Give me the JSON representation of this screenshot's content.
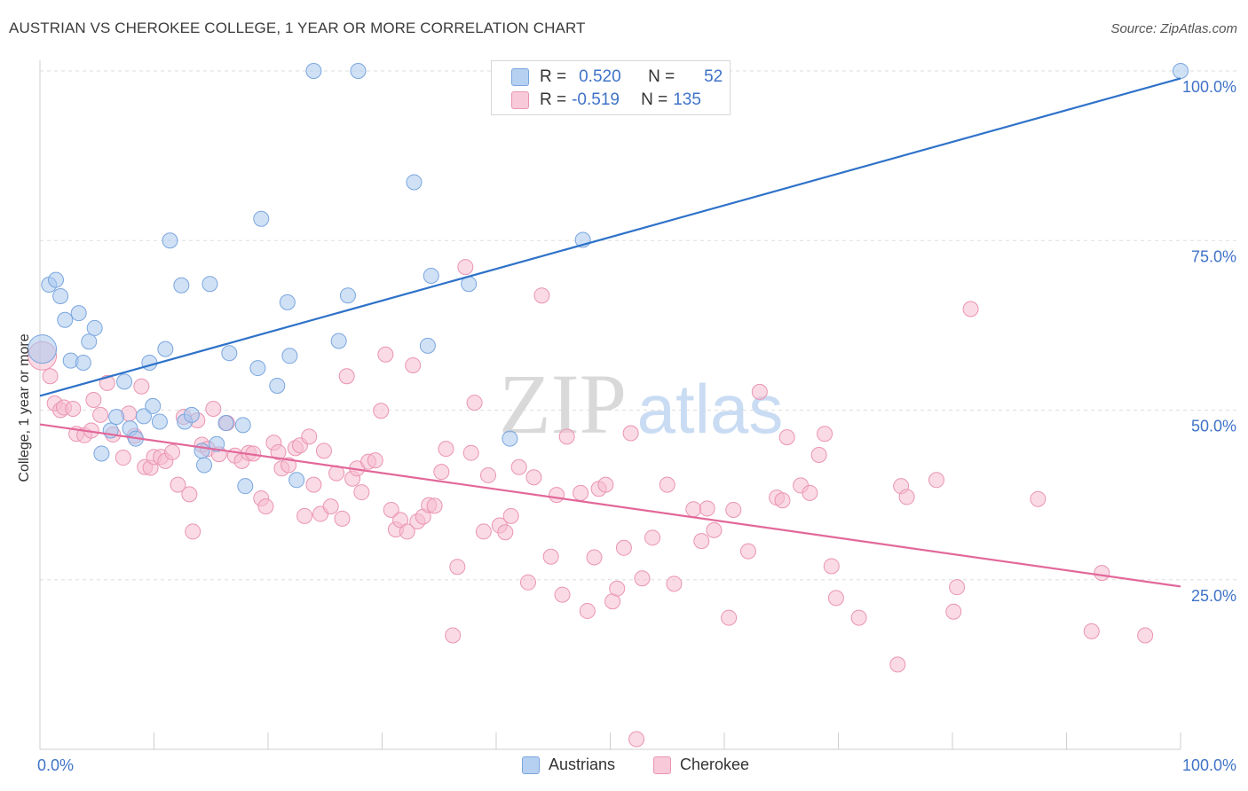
{
  "title": "AUSTRIAN VS CHEROKEE COLLEGE, 1 YEAR OR MORE CORRELATION CHART",
  "source": "Source: ZipAtlas.com",
  "watermark": {
    "zip": "ZIP",
    "atlas": "atlas"
  },
  "stats": {
    "r_label": "R =",
    "n_label": "N =",
    "rows": [
      {
        "r": "0.520",
        "n": "52"
      },
      {
        "r": "-0.519",
        "n": "135"
      }
    ]
  },
  "legend": [
    "Austrians",
    "Cherokee"
  ],
  "colors": {
    "blue_fill": "#a9c8ef",
    "blue_stroke": "#7aa6de",
    "blue_line": "#2e72c9",
    "pink_fill": "#f6bcd0",
    "pink_stroke": "#ea95b2",
    "pink_line": "#e2689a",
    "tick_text": "#3f73c8",
    "grid": "#dedede"
  },
  "chart_data": {
    "type": "scatter",
    "title": "AUSTRIAN VS CHEROKEE COLLEGE, 1 YEAR OR MORE CORRELATION CHART",
    "xlabel": "",
    "ylabel": "College, 1 year or more",
    "xlim": [
      0,
      100
    ],
    "ylim": [
      0,
      100
    ],
    "x_tick_labels": [
      "0.0%",
      "100.0%"
    ],
    "y_ticks": [
      25,
      50,
      75,
      100
    ],
    "y_tick_labels": [
      "25.0%",
      "50.0%",
      "75.0%",
      "100.0%"
    ],
    "grid": "horizontal dashed",
    "legend_position": "bottom",
    "series": [
      {
        "name": "Austrians",
        "trend": {
          "x": [
            0,
            100
          ],
          "y": [
            52.1,
            98.9
          ]
        },
        "points": [
          [
            0.2,
            59.0
          ],
          [
            0.8,
            68.5
          ],
          [
            1.4,
            69.2
          ],
          [
            1.8,
            66.8
          ],
          [
            2.2,
            63.3
          ],
          [
            2.7,
            57.3
          ],
          [
            3.4,
            64.3
          ],
          [
            3.8,
            57.0
          ],
          [
            4.3,
            60.1
          ],
          [
            4.8,
            62.1
          ],
          [
            5.4,
            43.6
          ],
          [
            6.2,
            47.0
          ],
          [
            6.7,
            49.0
          ],
          [
            7.4,
            54.2
          ],
          [
            7.9,
            47.3
          ],
          [
            8.4,
            45.8
          ],
          [
            9.1,
            49.1
          ],
          [
            9.6,
            57.0
          ],
          [
            9.9,
            50.6
          ],
          [
            10.5,
            48.3
          ],
          [
            11.0,
            59.0
          ],
          [
            11.4,
            75.0
          ],
          [
            12.4,
            68.4
          ],
          [
            12.7,
            48.3
          ],
          [
            13.3,
            49.3
          ],
          [
            14.2,
            44.0
          ],
          [
            14.4,
            41.9
          ],
          [
            14.9,
            68.6
          ],
          [
            15.5,
            45.0
          ],
          [
            16.3,
            48.1
          ],
          [
            16.6,
            58.4
          ],
          [
            17.8,
            47.8
          ],
          [
            18.0,
            38.8
          ],
          [
            19.1,
            56.2
          ],
          [
            19.4,
            78.2
          ],
          [
            20.8,
            53.6
          ],
          [
            21.7,
            65.9
          ],
          [
            21.9,
            58.0
          ],
          [
            22.5,
            39.7
          ],
          [
            24.0,
            100.0
          ],
          [
            26.2,
            60.2
          ],
          [
            27.0,
            66.9
          ],
          [
            27.9,
            100.0
          ],
          [
            32.8,
            83.6
          ],
          [
            34.0,
            59.5
          ],
          [
            34.3,
            69.8
          ],
          [
            37.6,
            68.6
          ],
          [
            41.2,
            45.8
          ],
          [
            47.6,
            75.1
          ],
          [
            52.0,
            95.4
          ],
          [
            100.0,
            100.0
          ]
        ]
      },
      {
        "name": "Cherokee",
        "trend": {
          "x": [
            0,
            100
          ],
          "y": [
            47.9,
            24.0
          ]
        },
        "points": [
          [
            0.2,
            58.0
          ],
          [
            0.9,
            55.0
          ],
          [
            1.3,
            51.0
          ],
          [
            1.8,
            50.0
          ],
          [
            2.1,
            50.4
          ],
          [
            2.9,
            50.2
          ],
          [
            3.2,
            46.5
          ],
          [
            3.9,
            46.3
          ],
          [
            4.5,
            47.0
          ],
          [
            4.7,
            51.5
          ],
          [
            5.3,
            49.3
          ],
          [
            5.9,
            54.0
          ],
          [
            6.4,
            46.4
          ],
          [
            7.3,
            43.0
          ],
          [
            7.8,
            49.5
          ],
          [
            8.3,
            46.2
          ],
          [
            8.9,
            53.5
          ],
          [
            9.2,
            41.6
          ],
          [
            9.7,
            41.5
          ],
          [
            10.0,
            43.1
          ],
          [
            10.6,
            43.1
          ],
          [
            11.0,
            42.5
          ],
          [
            11.6,
            43.8
          ],
          [
            12.1,
            39.0
          ],
          [
            12.6,
            49.0
          ],
          [
            13.1,
            37.6
          ],
          [
            13.4,
            32.1
          ],
          [
            13.8,
            48.5
          ],
          [
            14.2,
            44.9
          ],
          [
            14.7,
            44.3
          ],
          [
            15.2,
            50.2
          ],
          [
            15.7,
            43.5
          ],
          [
            16.4,
            48.1
          ],
          [
            17.1,
            43.3
          ],
          [
            17.7,
            42.5
          ],
          [
            18.3,
            43.7
          ],
          [
            18.7,
            43.6
          ],
          [
            19.4,
            37.0
          ],
          [
            19.8,
            35.8
          ],
          [
            20.5,
            45.2
          ],
          [
            20.9,
            43.8
          ],
          [
            21.2,
            41.4
          ],
          [
            21.8,
            41.9
          ],
          [
            22.4,
            44.4
          ],
          [
            22.8,
            44.8
          ],
          [
            23.2,
            34.4
          ],
          [
            23.6,
            46.1
          ],
          [
            24.0,
            39.0
          ],
          [
            24.6,
            34.7
          ],
          [
            24.9,
            44.0
          ],
          [
            25.5,
            35.8
          ],
          [
            26.0,
            40.7
          ],
          [
            26.5,
            34.0
          ],
          [
            26.9,
            55.0
          ],
          [
            27.4,
            39.9
          ],
          [
            27.8,
            41.4
          ],
          [
            28.2,
            37.9
          ],
          [
            28.8,
            42.4
          ],
          [
            29.4,
            42.6
          ],
          [
            29.9,
            49.9
          ],
          [
            30.3,
            58.2
          ],
          [
            30.8,
            35.3
          ],
          [
            31.2,
            32.4
          ],
          [
            31.6,
            33.8
          ],
          [
            32.2,
            32.1
          ],
          [
            32.7,
            56.6
          ],
          [
            33.1,
            33.6
          ],
          [
            33.6,
            34.3
          ],
          [
            34.1,
            36.0
          ],
          [
            34.6,
            35.9
          ],
          [
            35.2,
            40.9
          ],
          [
            35.6,
            44.3
          ],
          [
            36.2,
            16.8
          ],
          [
            36.6,
            26.9
          ],
          [
            37.3,
            71.1
          ],
          [
            37.8,
            43.7
          ],
          [
            38.1,
            51.1
          ],
          [
            38.9,
            32.1
          ],
          [
            39.3,
            40.4
          ],
          [
            40.3,
            33.0
          ],
          [
            40.8,
            32.0
          ],
          [
            41.3,
            34.4
          ],
          [
            42.0,
            41.6
          ],
          [
            42.8,
            24.6
          ],
          [
            43.3,
            40.1
          ],
          [
            44.0,
            66.9
          ],
          [
            44.8,
            28.4
          ],
          [
            45.3,
            37.5
          ],
          [
            45.8,
            22.8
          ],
          [
            46.2,
            46.1
          ],
          [
            47.4,
            37.8
          ],
          [
            48.0,
            20.4
          ],
          [
            48.6,
            28.3
          ],
          [
            49.0,
            38.4
          ],
          [
            49.6,
            39.0
          ],
          [
            50.2,
            21.8
          ],
          [
            50.6,
            23.7
          ],
          [
            51.2,
            29.7
          ],
          [
            51.8,
            46.6
          ],
          [
            52.3,
            1.5
          ],
          [
            52.8,
            25.2
          ],
          [
            53.7,
            31.2
          ],
          [
            55.0,
            39.0
          ],
          [
            55.6,
            24.4
          ],
          [
            57.3,
            35.4
          ],
          [
            58.0,
            30.7
          ],
          [
            58.5,
            35.5
          ],
          [
            59.1,
            32.3
          ],
          [
            60.4,
            19.4
          ],
          [
            60.8,
            35.3
          ],
          [
            62.1,
            29.2
          ],
          [
            63.1,
            52.7
          ],
          [
            64.6,
            37.1
          ],
          [
            65.1,
            36.7
          ],
          [
            65.5,
            46.0
          ],
          [
            66.7,
            38.9
          ],
          [
            67.5,
            37.8
          ],
          [
            68.3,
            43.4
          ],
          [
            68.8,
            46.5
          ],
          [
            69.4,
            27.0
          ],
          [
            69.8,
            22.3
          ],
          [
            71.8,
            19.4
          ],
          [
            75.2,
            12.5
          ],
          [
            75.5,
            38.8
          ],
          [
            76.0,
            37.2
          ],
          [
            78.6,
            39.7
          ],
          [
            80.1,
            20.3
          ],
          [
            80.4,
            23.9
          ],
          [
            81.6,
            64.9
          ],
          [
            87.5,
            36.9
          ],
          [
            92.2,
            17.4
          ],
          [
            93.1,
            26.0
          ],
          [
            96.9,
            16.8
          ]
        ]
      }
    ]
  }
}
